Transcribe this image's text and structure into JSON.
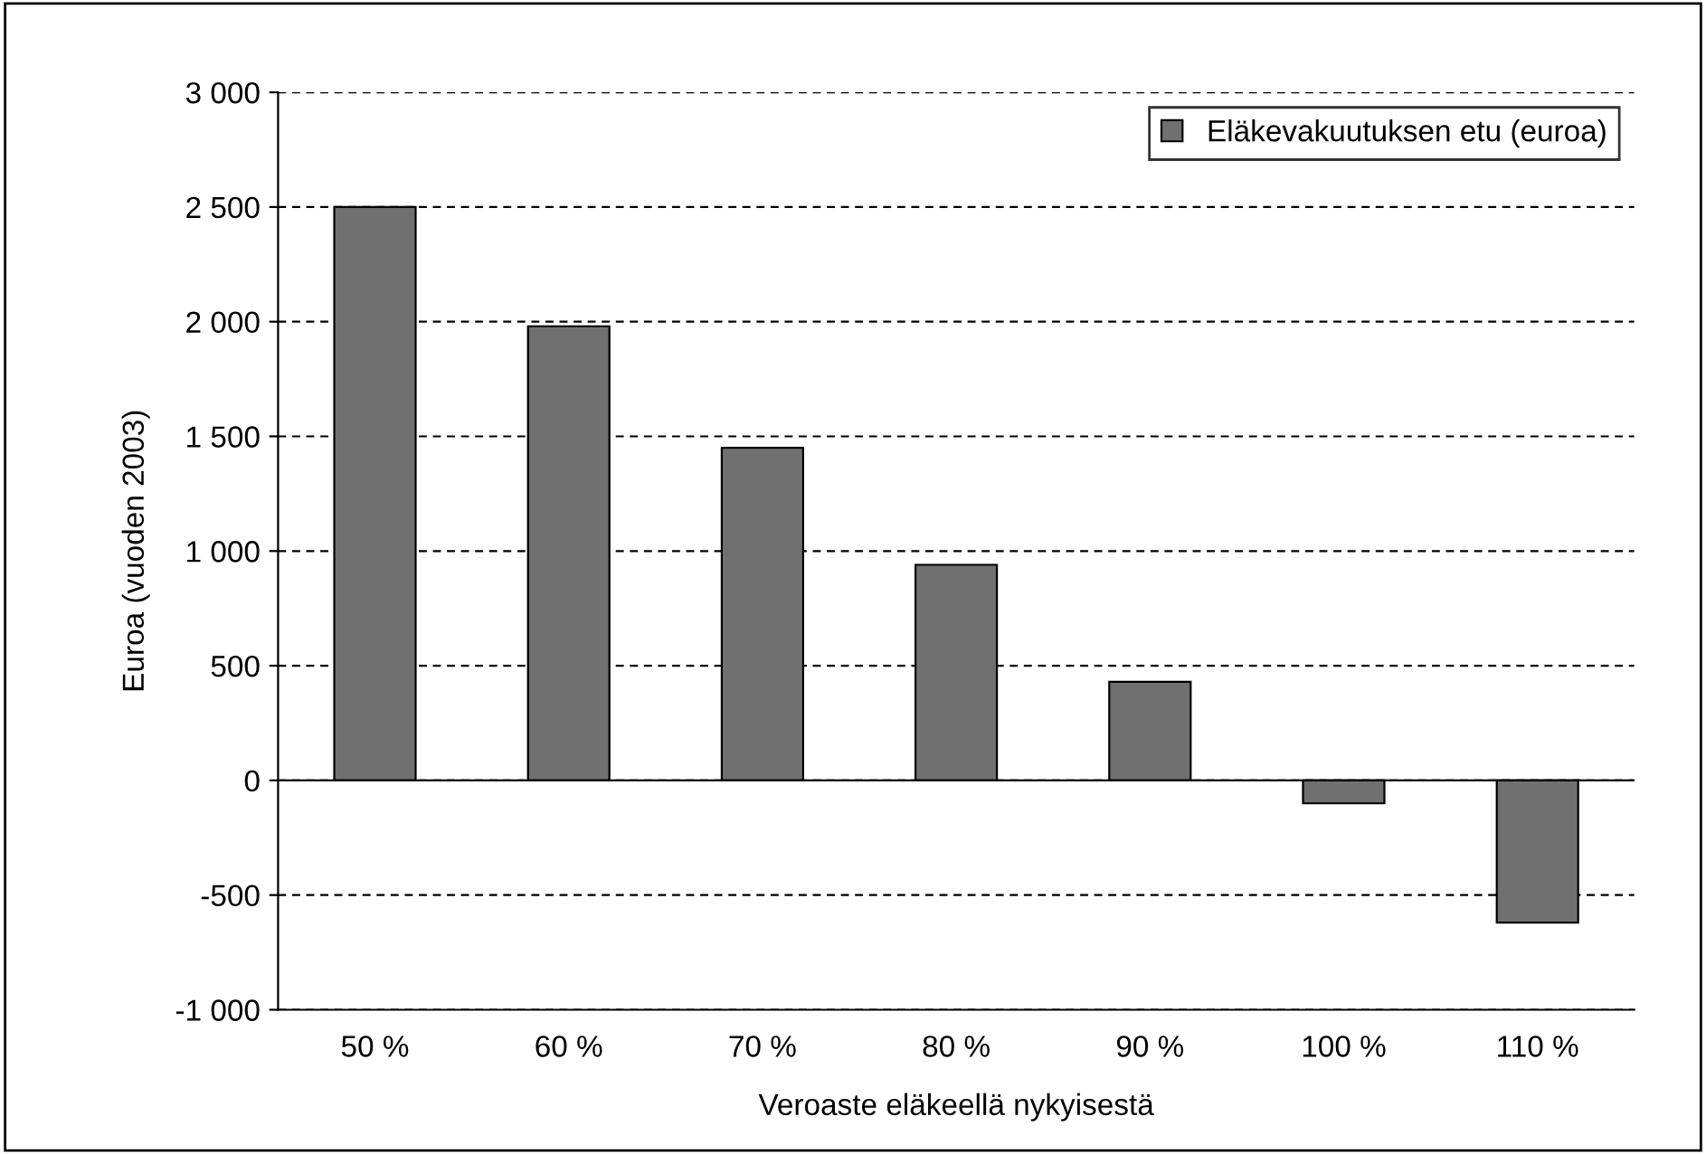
{
  "chart_data": {
    "type": "bar",
    "xlabel": "Veroaste eläkeellä nykyisestä",
    "ylabel": "Euroa (vuoden 2003)",
    "categories": [
      "50 %",
      "60 %",
      "70 %",
      "80 %",
      "90 %",
      "100 %",
      "110 %"
    ],
    "series": [
      {
        "name": "Eläkevakuutuksen etu (euroa)",
        "color": "#707070",
        "values": [
          2500,
          1980,
          1450,
          940,
          430,
          -100,
          -620
        ]
      }
    ],
    "ylim": [
      -1000,
      3000
    ],
    "yticks": [
      {
        "value": -1000,
        "label": "-1 000"
      },
      -500,
      0,
      500,
      {
        "value": 1000,
        "label": "1 000"
      },
      {
        "value": 1500,
        "label": "1 500"
      },
      {
        "value": 2000,
        "label": "2 000"
      },
      {
        "value": 2500,
        "label": "2 500"
      },
      {
        "value": 3000,
        "label": "3 000"
      }
    ],
    "grid": "y",
    "legend": "top right"
  }
}
